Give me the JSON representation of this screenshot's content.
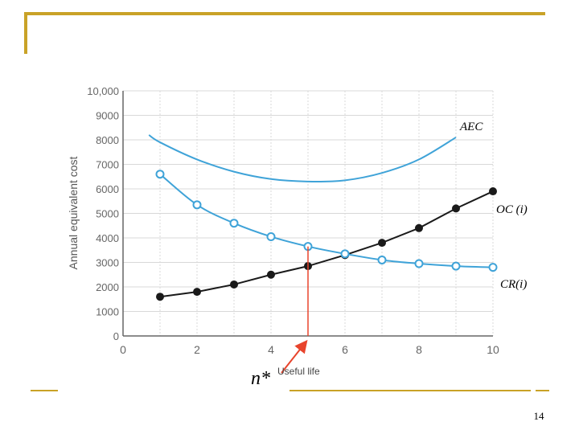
{
  "slide": {
    "page_number": "14"
  },
  "colors": {
    "accent": "#c9a227",
    "blue": "#3fa3d8",
    "black": "#1a1a1a",
    "red": "#e8442c",
    "grid": "#d8d8d8"
  },
  "chart_data": {
    "type": "line",
    "ylabel": "Annual equivalent cost",
    "xlabel": "Useful life",
    "xlim": [
      0,
      10
    ],
    "ylim": [
      0,
      10000
    ],
    "x_ticks": [
      "0",
      "2",
      "4",
      "6",
      "8",
      "10"
    ],
    "y_ticks": [
      "0",
      "1000",
      "2000",
      "3000",
      "4000",
      "5000",
      "6000",
      "7000",
      "8000",
      "9000",
      "10,000"
    ],
    "grid": true,
    "series": [
      {
        "name": "AEC",
        "label": "AEC",
        "marker": "none",
        "color": "blue",
        "x": [
          0.7,
          1,
          2,
          3,
          4,
          5,
          6,
          7,
          8,
          9
        ],
        "y": [
          8200,
          7900,
          7200,
          6700,
          6400,
          6300,
          6350,
          6650,
          7200,
          8100
        ]
      },
      {
        "name": "OC(i)",
        "label": "OC (i)",
        "marker": "filled-circle",
        "color": "black",
        "x": [
          1,
          2,
          3,
          4,
          5,
          6,
          7,
          8,
          9,
          10
        ],
        "y": [
          1600,
          1800,
          2100,
          2500,
          2850,
          3300,
          3800,
          4400,
          5200,
          5900
        ]
      },
      {
        "name": "CR(i)",
        "label": "CR(i)",
        "marker": "open-circle",
        "color": "blue",
        "x": [
          1,
          2,
          3,
          4,
          5,
          6,
          7,
          8,
          9,
          10
        ],
        "y": [
          6600,
          5350,
          4600,
          4050,
          3650,
          3350,
          3100,
          2950,
          2850,
          2800
        ]
      }
    ],
    "annotation": {
      "label": "n*",
      "x": 5,
      "y": 3650
    }
  }
}
